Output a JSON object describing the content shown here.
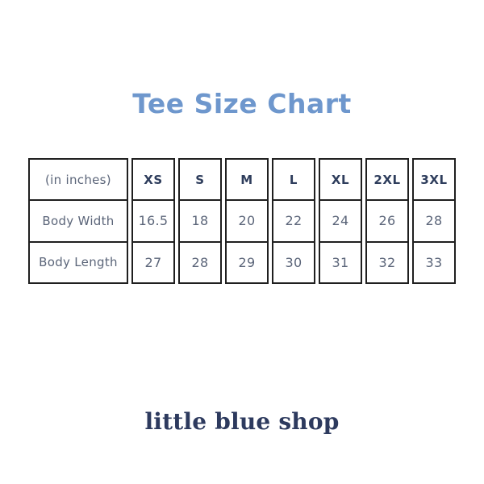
{
  "title": {
    "text": "Tee Size Chart",
    "color": "#6e97cd"
  },
  "footer": {
    "brand": "little blue shop",
    "color": "#2d3a5e"
  },
  "table": {
    "border_color": "#1f1f1f",
    "header_text_color": "#2e3d5c",
    "value_text_color": "#5b6579"
  },
  "chart_data": {
    "type": "table",
    "title": "Tee Size Chart",
    "unit": "inches",
    "columns": [
      "(in inches)",
      "XS",
      "S",
      "M",
      "L",
      "XL",
      "2XL",
      "3XL"
    ],
    "rows": [
      [
        "Body Width",
        "16.5",
        "18",
        "20",
        "22",
        "24",
        "26",
        "28"
      ],
      [
        "Body Length",
        "27",
        "28",
        "29",
        "30",
        "31",
        "32",
        "33"
      ]
    ]
  }
}
